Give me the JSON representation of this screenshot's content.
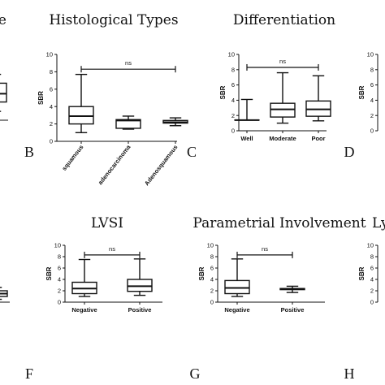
{
  "chart_data": [
    {
      "panel": "stage",
      "type": "box",
      "title": "stage",
      "letter": "",
      "ylabel": "",
      "ylim": [
        0,
        10
      ],
      "yticks": [],
      "categories": [],
      "boxes": [
        {
          "min": 1.6,
          "q1": 3.3,
          "median": 4.8,
          "q3": 6.7,
          "max": 8.3
        }
      ],
      "ns": null
    },
    {
      "panel": "histological",
      "type": "box",
      "title": "Histological Types",
      "letter": "B",
      "ylabel": "SBR",
      "ylim": [
        0,
        10
      ],
      "yticks": [
        0,
        2,
        4,
        6,
        8,
        10
      ],
      "categories": [
        "squamous",
        "adenocarcinoma",
        "Adenosquamous"
      ],
      "boxes": [
        {
          "min": 1.0,
          "q1": 2.0,
          "median": 2.9,
          "q3": 4.0,
          "max": 7.7
        },
        {
          "min": 1.4,
          "q1": 1.5,
          "median": 2.4,
          "q3": 2.5,
          "max": 2.9
        },
        {
          "min": 1.8,
          "q1": 2.1,
          "median": 2.2,
          "q3": 2.4,
          "max": 2.7
        }
      ],
      "ns": {
        "label": "ns",
        "from": 0,
        "to": 2,
        "y": 8.3
      }
    },
    {
      "panel": "differentiation",
      "type": "box",
      "title": "Differentiation",
      "letter": "C",
      "ylabel": "SBR",
      "ylim": [
        0,
        10
      ],
      "yticks": [
        0,
        2,
        4,
        6,
        8,
        10
      ],
      "categories": [
        "Well",
        "Moderate",
        "Poor"
      ],
      "boxes": [
        {
          "min": 1.4,
          "q1": 1.4,
          "median": 1.4,
          "q3": 1.4,
          "max": 4.1
        },
        {
          "min": 1.0,
          "q1": 1.8,
          "median": 2.8,
          "q3": 3.6,
          "max": 7.6
        },
        {
          "min": 1.3,
          "q1": 1.9,
          "median": 2.8,
          "q3": 3.9,
          "max": 7.2
        }
      ],
      "ns": {
        "label": "ns",
        "from": 0,
        "to": 2,
        "y": 8.3
      }
    },
    {
      "panel": "partial-d",
      "type": "box",
      "title": "",
      "letter": "D",
      "ylabel": "SBR",
      "ylim": [
        0,
        10
      ],
      "yticks": [
        0,
        2,
        4,
        6,
        8,
        10
      ],
      "categories": [],
      "boxes": [],
      "ns": null
    },
    {
      "panel": "lvsi",
      "type": "box",
      "title": "LVSI",
      "letter": "F",
      "ylabel": "SBR",
      "ylim": [
        0,
        10
      ],
      "yticks": [
        0,
        2,
        4,
        6,
        8,
        10
      ],
      "categories": [
        "Negative",
        "Positive"
      ],
      "boxes": [
        {
          "min": 1.0,
          "q1": 1.5,
          "median": 2.4,
          "q3": 3.5,
          "max": 7.5
        },
        {
          "min": 1.2,
          "q1": 1.9,
          "median": 2.8,
          "q3": 4.0,
          "max": 7.6
        }
      ],
      "ns": {
        "label": "ns",
        "from": 0,
        "to": 1,
        "y": 8.3
      }
    },
    {
      "panel": "parametrial",
      "type": "box",
      "title": "Parametrial Involvement",
      "letter": "G",
      "ylabel": "SBR",
      "ylim": [
        0,
        10
      ],
      "yticks": [
        0,
        2,
        4,
        6,
        8,
        10
      ],
      "categories": [
        "Negative",
        "Positive"
      ],
      "boxes": [
        {
          "min": 1.0,
          "q1": 1.5,
          "median": 2.5,
          "q3": 3.8,
          "max": 7.6
        },
        {
          "min": 1.7,
          "q1": 2.2,
          "median": 2.3,
          "q3": 2.4,
          "max": 2.8
        }
      ],
      "ns": {
        "label": "ns",
        "from": 0,
        "to": 1,
        "y": 8.3
      }
    },
    {
      "panel": "partial-h",
      "type": "box",
      "title": "Ly",
      "letter": "H",
      "ylabel": "SBR",
      "ylim": [
        0,
        10
      ],
      "yticks": [
        0,
        2,
        4,
        6,
        8,
        10
      ],
      "categories": [],
      "boxes": [],
      "ns": null
    },
    {
      "panel": "partial-e",
      "type": "box",
      "title": "",
      "letter": "",
      "ylabel": "",
      "ylim": [
        0,
        10
      ],
      "yticks": [],
      "categories": [],
      "boxes": [
        {
          "min": 0.5,
          "q1": 1.0,
          "median": 1.5,
          "q3": 2.0,
          "max": 2.6
        }
      ],
      "ns": null
    }
  ]
}
